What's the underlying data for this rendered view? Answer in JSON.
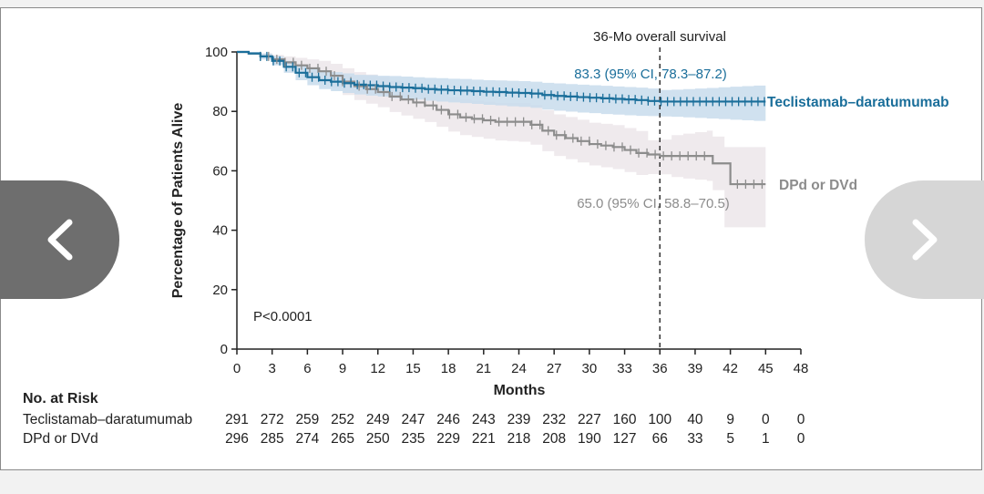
{
  "chart_data": {
    "type": "line",
    "title": "",
    "xlabel": "Months",
    "ylabel": "Percentage of Patients Alive",
    "xlim": [
      0,
      48
    ],
    "ylim": [
      0,
      100
    ],
    "x_ticks": [
      "0",
      "3",
      "6",
      "9",
      "12",
      "15",
      "18",
      "21",
      "24",
      "27",
      "30",
      "33",
      "36",
      "39",
      "42",
      "45",
      "48"
    ],
    "y_ticks": [
      "0",
      "20",
      "40",
      "60",
      "80",
      "100"
    ],
    "p_value": "P<0.0001",
    "reference_line": {
      "x": 36,
      "label": "36-Mo overall survival"
    },
    "series": [
      {
        "name": "Teclistamab–daratumumab",
        "color": "#1a6e9a",
        "band_color": "#c8dcec",
        "annotation": "83.3 (95% CI, 78.3–87.2)",
        "x": [
          0,
          1,
          2,
          3,
          4,
          5,
          6,
          7,
          8,
          9,
          10,
          11,
          12,
          13,
          14,
          15,
          16,
          17,
          18,
          19,
          20,
          21,
          22,
          23,
          24,
          25,
          26,
          27,
          28,
          29,
          30,
          31,
          32,
          33,
          34,
          35,
          36,
          37,
          38,
          39,
          40,
          41,
          42,
          43,
          44,
          45
        ],
        "y": [
          100,
          99.5,
          98.5,
          97,
          95,
          93,
          91.5,
          90.5,
          90,
          89.5,
          89,
          88.8,
          88.5,
          88.2,
          88,
          87.8,
          87.5,
          87.3,
          87.1,
          87,
          86.8,
          86.6,
          86.5,
          86.3,
          86.2,
          86,
          85.5,
          85.2,
          85,
          84.8,
          84.6,
          84.4,
          84.2,
          84,
          83.8,
          83.5,
          83.3,
          83.3,
          83.3,
          83.3,
          83.3,
          83.3,
          83.3,
          83.3,
          83.3,
          83.3
        ],
        "ci_lower": [
          100,
          99,
          97.5,
          95.5,
          93,
          90.5,
          88.8,
          87.5,
          86.8,
          86.2,
          85.7,
          85.3,
          85,
          84.5,
          84.2,
          84,
          83.6,
          83.3,
          83,
          82.8,
          82.5,
          82.2,
          82,
          81.7,
          81.5,
          81.2,
          80.6,
          80.2,
          79.9,
          79.6,
          79.4,
          79.1,
          78.9,
          78.7,
          78.5,
          78.4,
          78.3,
          78.2,
          78,
          77.8,
          77.6,
          77.4,
          77.2,
          77,
          76.8,
          76.5
        ],
        "ci_upper": [
          100,
          100,
          99.5,
          98.5,
          97,
          95.5,
          94.2,
          93.5,
          93.2,
          92.8,
          92.3,
          92.2,
          92,
          91.9,
          91.7,
          91.5,
          91.3,
          91.2,
          91,
          90.9,
          90.7,
          90.5,
          90.4,
          90.3,
          90.2,
          90,
          89.6,
          89.4,
          89.2,
          89,
          88.8,
          88.6,
          88.4,
          88.2,
          88,
          87.7,
          87.2,
          87.3,
          87.5,
          87.7,
          87.9,
          88.1,
          88.3,
          88.5,
          88.7,
          89
        ],
        "at_risk": [
          "291",
          "272",
          "259",
          "252",
          "249",
          "247",
          "246",
          "243",
          "239",
          "232",
          "227",
          "160",
          "100",
          "40",
          "9",
          "0",
          "0"
        ]
      },
      {
        "name": "DPd or DVd",
        "color": "#8c8c8c",
        "band_color": "#ece6ea",
        "annotation": "65.0 (95% CI, 58.8–70.5)",
        "x": [
          0,
          1,
          2,
          3,
          4,
          5,
          6,
          7,
          8,
          9,
          10,
          11,
          12,
          13,
          14,
          15,
          16,
          17,
          18,
          19,
          20,
          21,
          22,
          23,
          24,
          25,
          26,
          27,
          28,
          29,
          30,
          31,
          32,
          33,
          34,
          35,
          36,
          37,
          38,
          39,
          40,
          40.5,
          41.5,
          42,
          43,
          44,
          45
        ],
        "y": [
          100,
          99.5,
          98.5,
          97.5,
          96.5,
          95.5,
          94.5,
          93.5,
          92,
          90,
          88.5,
          87.5,
          86.5,
          85,
          84,
          83,
          82,
          80.5,
          79,
          78,
          77.5,
          77,
          76.5,
          76.5,
          76.5,
          75.5,
          73.5,
          72,
          71,
          70,
          69,
          68.5,
          68,
          67,
          66,
          65.5,
          65,
          65,
          65,
          65,
          65,
          62.5,
          62.5,
          55.5,
          55.5,
          55.5,
          55.5
        ],
        "ci_lower": [
          100,
          99,
          97.5,
          96,
          94.5,
          93,
          91.5,
          90,
          88,
          85.5,
          83.8,
          82.6,
          81.4,
          79.8,
          78.6,
          77.5,
          76.4,
          74.8,
          73.2,
          72,
          71.4,
          70.8,
          70.2,
          70,
          69.8,
          68.8,
          66.6,
          65,
          63.9,
          62.8,
          61.8,
          61.2,
          60.6,
          59.6,
          58.6,
          58.9,
          58.8,
          57.9,
          57.4,
          57,
          56.6,
          53.5,
          41,
          41,
          41,
          41,
          41
        ],
        "ci_upper": [
          100,
          100,
          99.5,
          99,
          98.5,
          98,
          97.5,
          97,
          96,
          94.5,
          93.2,
          92.4,
          91.6,
          90.2,
          89.4,
          88.5,
          87.6,
          86.2,
          84.8,
          84,
          83.6,
          83.2,
          82.8,
          82.8,
          82.8,
          82.2,
          80.4,
          79,
          78.1,
          77.2,
          76.2,
          75.8,
          75.4,
          74.4,
          73.4,
          70.3,
          70.5,
          72,
          72.5,
          73,
          73.5,
          71.5,
          68,
          68,
          68,
          68,
          68
        ],
        "at_risk": [
          "296",
          "285",
          "274",
          "265",
          "250",
          "235",
          "229",
          "221",
          "218",
          "208",
          "190",
          "127",
          "66",
          "33",
          "5",
          "1",
          "0"
        ]
      }
    ],
    "at_risk_header": "No. at Risk"
  },
  "navigation": {
    "prev_icon": "chevron-left-icon",
    "next_icon": "chevron-right-icon"
  }
}
